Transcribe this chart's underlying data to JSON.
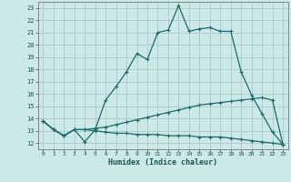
{
  "xlabel": "Humidex (Indice chaleur)",
  "bg_color": "#cce8e8",
  "grid_color": "#b0cccc",
  "line_color": "#1a6b6b",
  "xlim": [
    -0.5,
    23.5
  ],
  "ylim": [
    11.5,
    23.5
  ],
  "xticks": [
    0,
    1,
    2,
    3,
    4,
    5,
    6,
    7,
    8,
    9,
    10,
    11,
    12,
    13,
    14,
    15,
    16,
    17,
    18,
    19,
    20,
    21,
    22,
    23
  ],
  "yticks": [
    12,
    13,
    14,
    15,
    16,
    17,
    18,
    19,
    20,
    21,
    22,
    23
  ],
  "series": [
    [
      13.8,
      13.1,
      12.6,
      13.1,
      12.1,
      13.1,
      15.5,
      16.6,
      17.8,
      19.3,
      18.8,
      21.0,
      21.2,
      23.2,
      21.1,
      21.3,
      21.4,
      21.1,
      21.1,
      17.8,
      15.9,
      14.4,
      12.9,
      11.9
    ],
    [
      13.8,
      13.1,
      12.6,
      13.1,
      13.1,
      13.2,
      13.3,
      13.5,
      13.7,
      13.9,
      14.1,
      14.3,
      14.5,
      14.7,
      14.9,
      15.1,
      15.2,
      15.3,
      15.4,
      15.5,
      15.6,
      15.7,
      15.5,
      11.9
    ],
    [
      13.8,
      13.1,
      12.6,
      13.1,
      13.1,
      13.0,
      12.9,
      12.8,
      12.8,
      12.7,
      12.7,
      12.7,
      12.6,
      12.6,
      12.6,
      12.5,
      12.5,
      12.5,
      12.4,
      12.3,
      12.2,
      12.1,
      12.0,
      11.9
    ]
  ]
}
